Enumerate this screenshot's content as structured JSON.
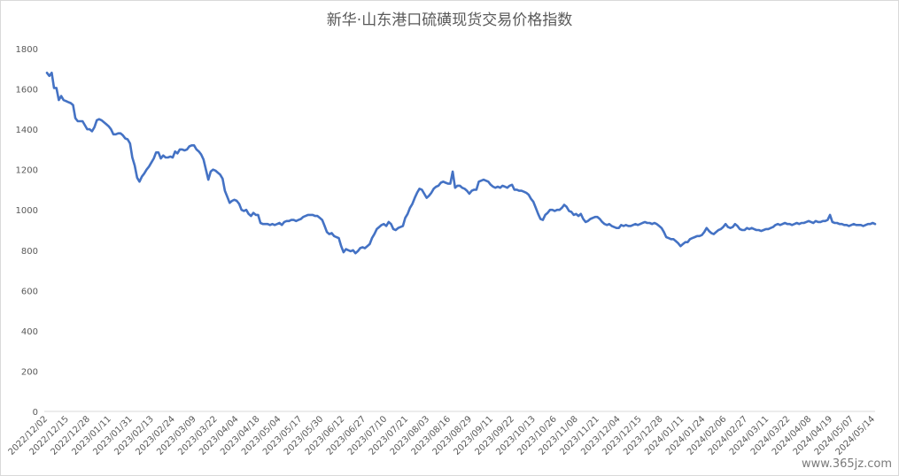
{
  "chart_data": {
    "type": "line",
    "title": "新华·山东港口硫磺现货交易价格指数",
    "xlabel": "",
    "ylabel": "",
    "ylim": [
      0,
      1800
    ],
    "yticks": [
      0,
      200,
      400,
      600,
      800,
      1000,
      1200,
      1400,
      1600,
      1800
    ],
    "x_tick_labels": [
      "2022/12/02",
      "2022/12/15",
      "2022/12/28",
      "2023/01/11",
      "2023/01/31",
      "2023/02/13",
      "2023/02/24",
      "2023/03/09",
      "2023/03/22",
      "2023/04/04",
      "2023/04/18",
      "2023/05/04",
      "2023/05/17",
      "2023/05/30",
      "2023/06/12",
      "2023/06/27",
      "2023/07/10",
      "2023/07/21",
      "2023/08/03",
      "2023/08/16",
      "2023/08/29",
      "2023/09/11",
      "2023/09/22",
      "2023/10/13",
      "2023/10/26",
      "2023/11/08",
      "2023/11/21",
      "2023/12/04",
      "2023/12/15",
      "2023/12/28",
      "2024/01/11",
      "2024/01/24",
      "2024/02/06",
      "2024/02/27",
      "2024/03/11",
      "2024/03/22",
      "2024/04/08",
      "2024/04/19",
      "2024/05/07",
      "2024/05/14"
    ],
    "gridlines": false,
    "line_color": "#4472C4",
    "series": [
      {
        "values": [
          1680,
          1665,
          1680,
          1605,
          1605,
          1545,
          1565,
          1545,
          1540,
          1535,
          1530,
          1520,
          1455,
          1440,
          1440,
          1440,
          1420,
          1400,
          1400,
          1390,
          1410,
          1445,
          1450,
          1445,
          1435,
          1425,
          1415,
          1400,
          1375,
          1375,
          1380,
          1380,
          1370,
          1355,
          1350,
          1330,
          1260,
          1220,
          1160,
          1140,
          1165,
          1180,
          1200,
          1215,
          1235,
          1255,
          1285,
          1285,
          1255,
          1270,
          1260,
          1260,
          1265,
          1260,
          1290,
          1280,
          1300,
          1300,
          1295,
          1300,
          1315,
          1320,
          1320,
          1300,
          1290,
          1275,
          1250,
          1200,
          1150,
          1190,
          1200,
          1195,
          1185,
          1175,
          1155,
          1095,
          1065,
          1035,
          1045,
          1050,
          1045,
          1030,
          1000,
          995,
          1000,
          980,
          970,
          985,
          975,
          975,
          935,
          930,
          930,
          930,
          925,
          930,
          925,
          930,
          935,
          925,
          940,
          945,
          945,
          950,
          950,
          945,
          950,
          955,
          965,
          970,
          975,
          975,
          975,
          970,
          970,
          960,
          950,
          920,
          890,
          880,
          885,
          870,
          865,
          860,
          820,
          790,
          805,
          800,
          795,
          800,
          785,
          795,
          810,
          815,
          810,
          820,
          830,
          860,
          880,
          905,
          915,
          925,
          930,
          920,
          940,
          930,
          905,
          900,
          910,
          915,
          920,
          960,
          980,
          1010,
          1030,
          1060,
          1085,
          1105,
          1100,
          1080,
          1060,
          1070,
          1085,
          1105,
          1115,
          1120,
          1135,
          1140,
          1135,
          1130,
          1130,
          1190,
          1110,
          1120,
          1120,
          1110,
          1105,
          1095,
          1080,
          1095,
          1100,
          1100,
          1140,
          1145,
          1150,
          1145,
          1140,
          1125,
          1115,
          1110,
          1115,
          1110,
          1120,
          1115,
          1110,
          1120,
          1125,
          1100,
          1100,
          1095,
          1095,
          1090,
          1085,
          1075,
          1055,
          1040,
          1010,
          980,
          955,
          950,
          975,
          985,
          1000,
          1000,
          995,
          1000,
          1000,
          1010,
          1025,
          1015,
          995,
          990,
          975,
          980,
          970,
          980,
          955,
          940,
          945,
          955,
          960,
          965,
          965,
          955,
          940,
          930,
          925,
          930,
          920,
          915,
          910,
          910,
          925,
          920,
          925,
          920,
          920,
          925,
          930,
          925,
          930,
          935,
          940,
          935,
          935,
          930,
          935,
          930,
          920,
          910,
          890,
          865,
          860,
          855,
          855,
          845,
          835,
          820,
          830,
          840,
          840,
          855,
          860,
          865,
          870,
          870,
          875,
          890,
          910,
          895,
          885,
          880,
          890,
          900,
          905,
          915,
          930,
          915,
          910,
          915,
          930,
          920,
          905,
          900,
          900,
          910,
          905,
          910,
          905,
          900,
          900,
          895,
          900,
          905,
          905,
          910,
          915,
          925,
          930,
          925,
          930,
          935,
          930,
          930,
          925,
          930,
          935,
          930,
          935,
          935,
          940,
          945,
          940,
          935,
          945,
          940,
          940,
          945,
          945,
          950,
          975,
          940,
          935,
          935,
          930,
          930,
          925,
          925,
          920,
          925,
          930,
          925,
          925,
          925,
          920,
          925,
          930,
          930,
          935,
          930
        ]
      }
    ]
  },
  "watermark": "www.365jz.com"
}
